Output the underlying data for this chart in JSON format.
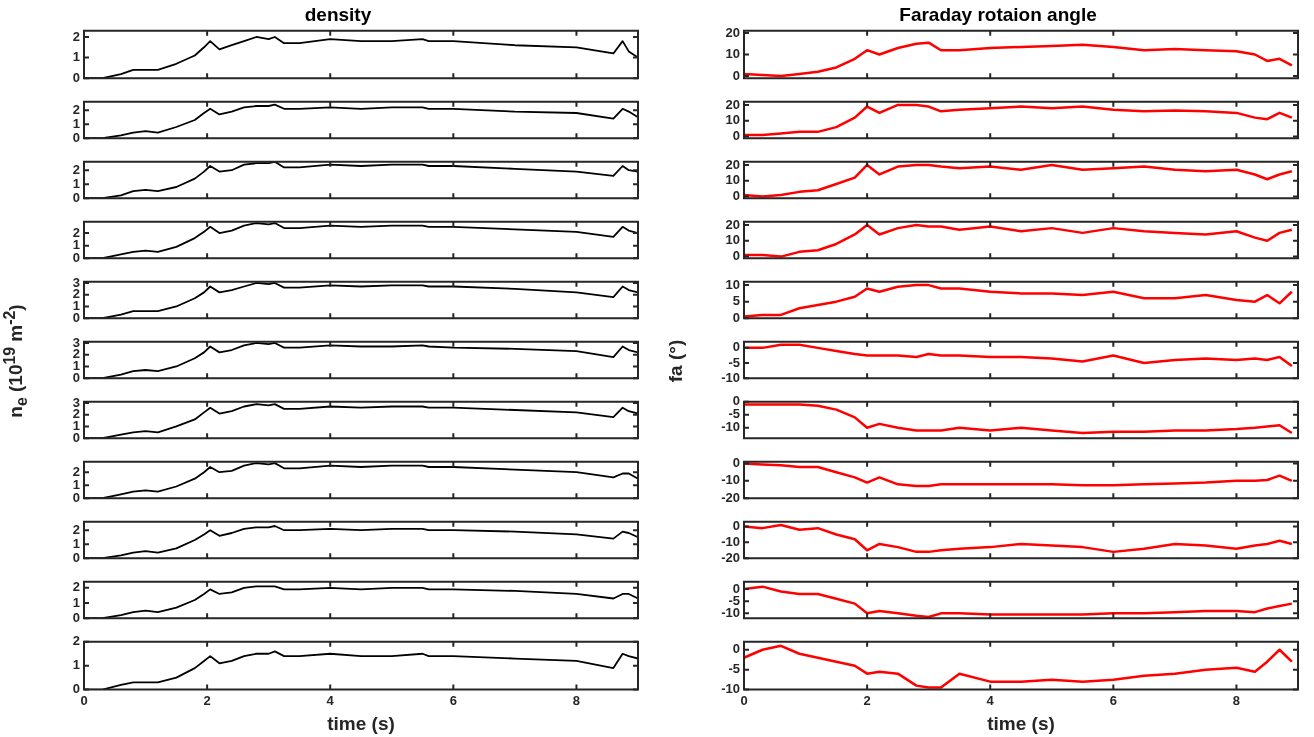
{
  "chart_data": [
    {
      "type": "line",
      "title": "density",
      "x": [
        0,
        0.3,
        0.6,
        0.8,
        1,
        1.2,
        1.5,
        1.8,
        1.95,
        2.05,
        2.2,
        2.4,
        2.6,
        2.8,
        3,
        3.1,
        3.25,
        3.5,
        4,
        4.5,
        5,
        5.5,
        5.6,
        6,
        7,
        8,
        8.6,
        8.75,
        8.85,
        9
      ],
      "series": [
        {
          "color": "#000000",
          "values": [
            0,
            0,
            0.2,
            0.4,
            0.4,
            0.4,
            0.7,
            1.1,
            1.5,
            1.8,
            1.4,
            1.6,
            1.8,
            2,
            1.9,
            2,
            1.7,
            1.7,
            1.9,
            1.8,
            1.8,
            1.9,
            1.8,
            1.8,
            1.6,
            1.5,
            1.2,
            1.8,
            1.3,
            1
          ]
        }
      ],
      "xlim": [
        0,
        9
      ],
      "xticks": [
        0,
        2,
        4,
        6,
        8
      ],
      "ylim": [
        0,
        2.3
      ],
      "yticks": [
        0,
        1,
        2
      ],
      "tick_labels": "y"
    },
    {
      "type": "line",
      "x": [
        0,
        0.3,
        0.6,
        0.8,
        1,
        1.2,
        1.5,
        1.8,
        1.95,
        2.05,
        2.2,
        2.4,
        2.6,
        2.8,
        3,
        3.1,
        3.25,
        3.5,
        4,
        4.5,
        5,
        5.5,
        5.6,
        6,
        7,
        8,
        8.6,
        8.75,
        8.85,
        9
      ],
      "series": [
        {
          "color": "#000000",
          "values": [
            0,
            0,
            0.2,
            0.4,
            0.5,
            0.4,
            0.8,
            1.3,
            1.8,
            2.1,
            1.7,
            1.9,
            2.2,
            2.3,
            2.3,
            2.4,
            2.1,
            2.1,
            2.2,
            2.1,
            2.2,
            2.2,
            2.1,
            2.1,
            1.9,
            1.8,
            1.4,
            2.1,
            1.9,
            1.5
          ]
        }
      ],
      "xlim": [
        0,
        9
      ],
      "xticks": [
        0,
        2,
        4,
        6,
        8
      ],
      "ylim": [
        0,
        2.6
      ],
      "yticks": [
        0,
        1,
        2
      ],
      "tick_labels": "y"
    },
    {
      "type": "line",
      "x": [
        0,
        0.3,
        0.6,
        0.8,
        1,
        1.2,
        1.5,
        1.8,
        1.95,
        2.05,
        2.2,
        2.4,
        2.6,
        2.8,
        3,
        3.1,
        3.25,
        3.5,
        4,
        4.5,
        5,
        5.5,
        5.6,
        6,
        7,
        8,
        8.6,
        8.75,
        8.85,
        9
      ],
      "series": [
        {
          "color": "#000000",
          "values": [
            0,
            0,
            0.2,
            0.5,
            0.6,
            0.5,
            0.8,
            1.4,
            1.9,
            2.3,
            1.9,
            2,
            2.4,
            2.5,
            2.5,
            2.6,
            2.2,
            2.2,
            2.4,
            2.3,
            2.4,
            2.4,
            2.3,
            2.3,
            2.1,
            1.9,
            1.6,
            2.3,
            2,
            1.9
          ]
        }
      ],
      "xlim": [
        0,
        9
      ],
      "xticks": [
        0,
        2,
        4,
        6,
        8
      ],
      "ylim": [
        0,
        2.6
      ],
      "yticks": [
        0,
        1,
        2
      ],
      "tick_labels": "y"
    },
    {
      "type": "line",
      "x": [
        0,
        0.3,
        0.6,
        0.8,
        1,
        1.2,
        1.5,
        1.8,
        1.95,
        2.05,
        2.2,
        2.4,
        2.6,
        2.8,
        3,
        3.1,
        3.25,
        3.5,
        4,
        4.5,
        5,
        5.5,
        5.6,
        6,
        7,
        8,
        8.6,
        8.75,
        8.85,
        9
      ],
      "series": [
        {
          "color": "#000000",
          "values": [
            0,
            0,
            0.3,
            0.5,
            0.6,
            0.5,
            0.9,
            1.6,
            2.1,
            2.5,
            2,
            2.2,
            2.6,
            2.8,
            2.7,
            2.8,
            2.4,
            2.4,
            2.6,
            2.5,
            2.6,
            2.6,
            2.5,
            2.5,
            2.3,
            2.1,
            1.7,
            2.5,
            2.2,
            2
          ]
        }
      ],
      "xlim": [
        0,
        9
      ],
      "xticks": [
        0,
        2,
        4,
        6,
        8
      ],
      "ylim": [
        0,
        2.9
      ],
      "yticks": [
        0,
        1,
        2
      ],
      "tick_labels": "y"
    },
    {
      "type": "line",
      "x": [
        0,
        0.3,
        0.6,
        0.8,
        1,
        1.2,
        1.5,
        1.8,
        1.95,
        2.05,
        2.2,
        2.4,
        2.6,
        2.8,
        3,
        3.1,
        3.25,
        3.5,
        4,
        4.5,
        5,
        5.5,
        5.6,
        6,
        7,
        8,
        8.6,
        8.75,
        8.85,
        9
      ],
      "series": [
        {
          "color": "#000000",
          "values": [
            0,
            0,
            0.3,
            0.6,
            0.6,
            0.6,
            1,
            1.7,
            2.2,
            2.7,
            2.2,
            2.4,
            2.7,
            3,
            2.9,
            3,
            2.6,
            2.6,
            2.8,
            2.7,
            2.8,
            2.8,
            2.7,
            2.7,
            2.5,
            2.2,
            1.8,
            2.7,
            2.4,
            2.2
          ]
        }
      ],
      "xlim": [
        0,
        9
      ],
      "xticks": [
        0,
        2,
        4,
        6,
        8
      ],
      "ylim": [
        0,
        3.1
      ],
      "yticks": [
        0,
        1,
        2,
        3
      ],
      "tick_labels": "y"
    },
    {
      "type": "line",
      "ylabel": "n$_{e}$ (10$^{19}$ m$^{-2}$)",
      "x": [
        0,
        0.3,
        0.6,
        0.8,
        1,
        1.2,
        1.5,
        1.8,
        1.95,
        2.05,
        2.2,
        2.4,
        2.6,
        2.8,
        3,
        3.1,
        3.25,
        3.5,
        4,
        4.5,
        5,
        5.5,
        5.6,
        6,
        7,
        8,
        8.6,
        8.75,
        8.85,
        9
      ],
      "series": [
        {
          "color": "#000000",
          "values": [
            0,
            0,
            0.3,
            0.6,
            0.7,
            0.6,
            1,
            1.7,
            2.2,
            2.7,
            2.2,
            2.4,
            2.8,
            3,
            2.9,
            3,
            2.6,
            2.6,
            2.8,
            2.7,
            2.7,
            2.8,
            2.7,
            2.6,
            2.5,
            2.3,
            1.8,
            2.7,
            2.4,
            2.2
          ]
        }
      ],
      "xlim": [
        0,
        9
      ],
      "xticks": [
        0,
        2,
        4,
        6,
        8
      ],
      "ylim": [
        0,
        3.1
      ],
      "yticks": [
        0,
        1,
        2,
        3
      ],
      "tick_labels": "y"
    },
    {
      "type": "line",
      "x": [
        0,
        0.3,
        0.6,
        0.8,
        1,
        1.2,
        1.5,
        1.8,
        1.95,
        2.05,
        2.2,
        2.4,
        2.6,
        2.8,
        3,
        3.1,
        3.25,
        3.5,
        4,
        4.5,
        5,
        5.5,
        5.6,
        6,
        7,
        8,
        8.6,
        8.75,
        8.85,
        9
      ],
      "series": [
        {
          "color": "#000000",
          "values": [
            0,
            0,
            0.3,
            0.5,
            0.6,
            0.5,
            1,
            1.6,
            2.2,
            2.6,
            2.1,
            2.3,
            2.7,
            2.9,
            2.8,
            2.9,
            2.5,
            2.5,
            2.7,
            2.6,
            2.7,
            2.7,
            2.6,
            2.6,
            2.4,
            2.2,
            1.8,
            2.6,
            2.3,
            2.1
          ]
        }
      ],
      "xlim": [
        0,
        9
      ],
      "xticks": [
        0,
        2,
        4,
        6,
        8
      ],
      "ylim": [
        0,
        3.1
      ],
      "yticks": [
        0,
        1,
        2,
        3
      ],
      "tick_labels": "y"
    },
    {
      "type": "line",
      "x": [
        0,
        0.3,
        0.6,
        0.8,
        1,
        1.2,
        1.5,
        1.8,
        1.95,
        2.05,
        2.2,
        2.4,
        2.6,
        2.8,
        3,
        3.1,
        3.25,
        3.5,
        4,
        4.5,
        5,
        5.5,
        5.6,
        6,
        7,
        8,
        8.6,
        8.75,
        8.85,
        9
      ],
      "series": [
        {
          "color": "#000000",
          "values": [
            0,
            0,
            0.3,
            0.5,
            0.6,
            0.5,
            0.9,
            1.5,
            2,
            2.4,
            2,
            2.1,
            2.5,
            2.7,
            2.6,
            2.7,
            2.3,
            2.3,
            2.5,
            2.4,
            2.5,
            2.5,
            2.4,
            2.4,
            2.2,
            2,
            1.6,
            1.9,
            1.9,
            1.5
          ]
        }
      ],
      "xlim": [
        0,
        9
      ],
      "xticks": [
        0,
        2,
        4,
        6,
        8
      ],
      "ylim": [
        0,
        2.8
      ],
      "yticks": [
        0,
        1,
        2
      ],
      "tick_labels": "y"
    },
    {
      "type": "line",
      "x": [
        0,
        0.3,
        0.6,
        0.8,
        1,
        1.2,
        1.5,
        1.8,
        1.95,
        2.05,
        2.2,
        2.4,
        2.6,
        2.8,
        3,
        3.1,
        3.25,
        3.5,
        4,
        4.5,
        5,
        5.5,
        5.6,
        6,
        7,
        8,
        8.6,
        8.75,
        8.85,
        9
      ],
      "series": [
        {
          "color": "#000000",
          "values": [
            0,
            0,
            0.2,
            0.4,
            0.5,
            0.4,
            0.7,
            1.3,
            1.7,
            2,
            1.6,
            1.8,
            2.1,
            2.2,
            2.2,
            2.3,
            2,
            2,
            2.1,
            2,
            2.1,
            2.1,
            2,
            2,
            1.9,
            1.7,
            1.4,
            1.9,
            1.8,
            1.5
          ]
        }
      ],
      "xlim": [
        0,
        9
      ],
      "xticks": [
        0,
        2,
        4,
        6,
        8
      ],
      "ylim": [
        0,
        2.6
      ],
      "yticks": [
        0,
        1,
        2
      ],
      "tick_labels": "y"
    },
    {
      "type": "line",
      "x": [
        0,
        0.3,
        0.6,
        0.8,
        1,
        1.2,
        1.5,
        1.8,
        1.95,
        2.05,
        2.2,
        2.4,
        2.6,
        2.8,
        3,
        3.1,
        3.25,
        3.5,
        4,
        4.5,
        5,
        5.5,
        5.6,
        6,
        7,
        8,
        8.6,
        8.75,
        8.85,
        9
      ],
      "series": [
        {
          "color": "#000000",
          "values": [
            0,
            0,
            0.2,
            0.4,
            0.5,
            0.4,
            0.7,
            1.2,
            1.6,
            1.9,
            1.6,
            1.7,
            2,
            2.1,
            2.1,
            2.1,
            1.9,
            1.9,
            2,
            1.9,
            2,
            2,
            1.9,
            1.9,
            1.8,
            1.6,
            1.3,
            1.6,
            1.6,
            1.3
          ]
        }
      ],
      "xlim": [
        0,
        9
      ],
      "xticks": [
        0,
        2,
        4,
        6,
        8
      ],
      "ylim": [
        0,
        2.4
      ],
      "yticks": [
        0,
        1,
        2
      ],
      "tick_labels": "y"
    },
    {
      "type": "line",
      "xlabel": "time (s)",
      "x": [
        0,
        0.3,
        0.6,
        0.8,
        1,
        1.2,
        1.5,
        1.8,
        1.95,
        2.05,
        2.2,
        2.4,
        2.6,
        2.8,
        3,
        3.1,
        3.25,
        3.5,
        4,
        4.5,
        5,
        5.5,
        5.6,
        6,
        7,
        8,
        8.6,
        8.75,
        8.85,
        9
      ],
      "series": [
        {
          "color": "#000000",
          "values": [
            0,
            0,
            0.2,
            0.3,
            0.3,
            0.3,
            0.5,
            0.9,
            1.2,
            1.4,
            1.1,
            1.2,
            1.4,
            1.5,
            1.5,
            1.6,
            1.4,
            1.4,
            1.5,
            1.4,
            1.4,
            1.5,
            1.4,
            1.4,
            1.3,
            1.2,
            0.9,
            1.5,
            1.4,
            1.3
          ]
        }
      ],
      "xlim": [
        0,
        9
      ],
      "xticks": [
        0,
        2,
        4,
        6,
        8
      ],
      "ylim": [
        0,
        2
      ],
      "yticks": [
        0,
        1,
        2
      ]
    },
    {
      "type": "line",
      "title": "Faraday rotaion angle",
      "x": [
        0,
        0.3,
        0.6,
        0.9,
        1.2,
        1.5,
        1.8,
        2.0,
        2.2,
        2.5,
        2.8,
        3.0,
        3.2,
        3.5,
        4,
        4.5,
        5,
        5.5,
        6,
        6.5,
        7,
        7.5,
        8,
        8.3,
        8.5,
        8.7,
        8.9
      ],
      "series": [
        {
          "color": "#ff0000",
          "values": [
            1,
            0.5,
            0,
            1,
            2,
            4,
            8,
            12,
            10,
            13,
            15,
            15.5,
            12,
            12,
            13,
            13.5,
            14,
            14.5,
            13.5,
            12,
            12.5,
            12,
            11.5,
            10,
            7,
            8,
            5
          ]
        }
      ],
      "xlim": [
        0,
        9
      ],
      "xticks": [
        0,
        2,
        4,
        6,
        8
      ],
      "ylim": [
        -1,
        21
      ],
      "yticks": [
        0,
        10,
        20
      ],
      "tick_labels": "y"
    },
    {
      "type": "line",
      "x": [
        0,
        0.3,
        0.6,
        0.9,
        1.2,
        1.5,
        1.8,
        2.0,
        2.2,
        2.5,
        2.8,
        3.0,
        3.2,
        3.5,
        4,
        4.5,
        5,
        5.5,
        6,
        6.5,
        7,
        7.5,
        8,
        8.3,
        8.5,
        8.7,
        8.9
      ],
      "series": [
        {
          "color": "#ff0000",
          "values": [
            1,
            1,
            2,
            3,
            3,
            6,
            12,
            19,
            15,
            20,
            20,
            19,
            16,
            17,
            18,
            19,
            18,
            19,
            17,
            16,
            16.5,
            16,
            15,
            12,
            11,
            15,
            12
          ]
        }
      ],
      "xlim": [
        0,
        9
      ],
      "xticks": [
        0,
        2,
        4,
        6,
        8
      ],
      "ylim": [
        -1,
        22
      ],
      "yticks": [
        0,
        10,
        20
      ],
      "tick_labels": "y"
    },
    {
      "type": "line",
      "x": [
        0,
        0.3,
        0.6,
        0.9,
        1.2,
        1.5,
        1.8,
        2.0,
        2.2,
        2.5,
        2.8,
        3.0,
        3.2,
        3.5,
        4,
        4.5,
        5,
        5.5,
        6,
        6.5,
        7,
        7.5,
        8,
        8.3,
        8.5,
        8.7,
        8.9
      ],
      "series": [
        {
          "color": "#ff0000",
          "values": [
            1,
            0,
            1,
            3,
            4,
            8,
            12,
            20,
            14,
            19,
            20,
            20,
            19,
            18,
            19,
            17,
            20,
            17,
            18,
            19,
            17,
            16,
            17,
            14,
            11,
            14,
            16
          ]
        }
      ],
      "xlim": [
        0,
        9
      ],
      "xticks": [
        0,
        2,
        4,
        6,
        8
      ],
      "ylim": [
        -1,
        22
      ],
      "yticks": [
        0,
        10,
        20
      ],
      "tick_labels": "y"
    },
    {
      "type": "line",
      "x": [
        0,
        0.3,
        0.6,
        0.9,
        1.2,
        1.5,
        1.8,
        2.0,
        2.2,
        2.5,
        2.8,
        3.0,
        3.2,
        3.5,
        4,
        4.5,
        5,
        5.5,
        6,
        6.5,
        7,
        7.5,
        8,
        8.3,
        8.5,
        8.7,
        8.9
      ],
      "series": [
        {
          "color": "#ff0000",
          "values": [
            1,
            1,
            0,
            3,
            4,
            8,
            14,
            20,
            14,
            18,
            20,
            19,
            19,
            17,
            19,
            16,
            18,
            15,
            18,
            16,
            15,
            14,
            16,
            12,
            10,
            15,
            17
          ]
        }
      ],
      "xlim": [
        0,
        9
      ],
      "xticks": [
        0,
        2,
        4,
        6,
        8
      ],
      "ylim": [
        -1,
        22
      ],
      "yticks": [
        0,
        10,
        20
      ],
      "tick_labels": "y"
    },
    {
      "type": "line",
      "x": [
        0,
        0.3,
        0.6,
        0.9,
        1.2,
        1.5,
        1.8,
        2.0,
        2.2,
        2.5,
        2.8,
        3.0,
        3.2,
        3.5,
        4,
        4.5,
        5,
        5.5,
        6,
        6.5,
        7,
        7.5,
        8,
        8.3,
        8.5,
        8.7,
        8.9
      ],
      "series": [
        {
          "color": "#ff0000",
          "values": [
            0.5,
            1,
            1,
            3,
            4,
            5,
            6.5,
            9,
            8,
            9.5,
            10,
            10,
            9,
            9,
            8,
            7.5,
            7.5,
            7,
            8,
            6,
            6,
            7,
            5.5,
            5,
            7,
            4.5,
            8
          ]
        }
      ],
      "xlim": [
        0,
        9
      ],
      "xticks": [
        0,
        2,
        4,
        6,
        8
      ],
      "ylim": [
        0,
        11
      ],
      "yticks": [
        0,
        5,
        10
      ],
      "tick_labels": "y"
    },
    {
      "type": "line",
      "ylabel": "fa (°)",
      "x": [
        0,
        0.3,
        0.6,
        0.9,
        1.2,
        1.5,
        1.8,
        2.0,
        2.2,
        2.5,
        2.8,
        3.0,
        3.2,
        3.5,
        4,
        4.5,
        5,
        5.5,
        6,
        6.5,
        7,
        7.5,
        8,
        8.3,
        8.5,
        8.7,
        8.9
      ],
      "series": [
        {
          "color": "#ff0000",
          "values": [
            0,
            0,
            1,
            1,
            0,
            -1,
            -2,
            -2.5,
            -2.5,
            -2.5,
            -3,
            -2,
            -2.5,
            -2.5,
            -3,
            -3,
            -3.5,
            -4.5,
            -2.5,
            -5,
            -4,
            -3.5,
            -4,
            -3.5,
            -4,
            -3,
            -6
          ]
        }
      ],
      "xlim": [
        0,
        9
      ],
      "xticks": [
        0,
        2,
        4,
        6,
        8
      ],
      "ylim": [
        -10,
        2
      ],
      "yticks": [
        -10,
        -5,
        0
      ],
      "tick_labels": "y"
    },
    {
      "type": "line",
      "x": [
        0,
        0.3,
        0.6,
        0.9,
        1.2,
        1.5,
        1.8,
        2.0,
        2.2,
        2.5,
        2.8,
        3.0,
        3.2,
        3.5,
        4,
        4.5,
        5,
        5.5,
        6,
        6.5,
        7,
        7.5,
        8,
        8.3,
        8.5,
        8.7,
        8.9
      ],
      "series": [
        {
          "color": "#ff0000",
          "values": [
            -1,
            -1,
            -1,
            -1,
            -1.5,
            -3,
            -6,
            -10,
            -8.5,
            -10,
            -11,
            -11,
            -11,
            -10,
            -11,
            -10,
            -11,
            -12,
            -11.5,
            -11.5,
            -11,
            -11,
            -10.5,
            -10,
            -9.5,
            -9,
            -12
          ]
        }
      ],
      "xlim": [
        0,
        9
      ],
      "xticks": [
        0,
        2,
        4,
        6,
        8
      ],
      "ylim": [
        -14,
        0
      ],
      "yticks": [
        -10,
        -5,
        0
      ],
      "tick_labels": "y"
    },
    {
      "type": "line",
      "x": [
        0,
        0.3,
        0.6,
        0.9,
        1.2,
        1.5,
        1.8,
        2.0,
        2.2,
        2.5,
        2.8,
        3.0,
        3.2,
        3.5,
        4,
        4.5,
        5,
        5.5,
        6,
        6.5,
        7,
        7.5,
        8,
        8.3,
        8.5,
        8.7,
        8.9
      ],
      "series": [
        {
          "color": "#ff0000",
          "values": [
            0,
            -0.5,
            -1,
            -2,
            -2,
            -5,
            -8,
            -11,
            -8,
            -12,
            -13,
            -13,
            -12,
            -12,
            -12,
            -12,
            -12,
            -12.5,
            -12.5,
            -12,
            -11.5,
            -11,
            -10,
            -10,
            -9.5,
            -7,
            -10
          ]
        }
      ],
      "xlim": [
        0,
        9
      ],
      "xticks": [
        0,
        2,
        4,
        6,
        8
      ],
      "ylim": [
        -20,
        1
      ],
      "yticks": [
        -20,
        -10,
        0
      ],
      "tick_labels": "y"
    },
    {
      "type": "line",
      "x": [
        0,
        0.3,
        0.6,
        0.9,
        1.2,
        1.5,
        1.8,
        2.0,
        2.2,
        2.5,
        2.8,
        3.0,
        3.2,
        3.5,
        4,
        4.5,
        5,
        5.5,
        6,
        6.5,
        7,
        7.5,
        8,
        8.3,
        8.5,
        8.7,
        8.9
      ],
      "series": [
        {
          "color": "#ff0000",
          "values": [
            0,
            -1,
            1,
            -2,
            -1,
            -5,
            -8,
            -15,
            -11,
            -13,
            -16,
            -16,
            -15,
            -14,
            -13,
            -11,
            -12,
            -13,
            -16,
            -14,
            -11,
            -12,
            -14,
            -12,
            -11,
            -9,
            -11
          ]
        }
      ],
      "xlim": [
        0,
        9
      ],
      "xticks": [
        0,
        2,
        4,
        6,
        8
      ],
      "ylim": [
        -20,
        3
      ],
      "yticks": [
        -20,
        -10,
        0
      ],
      "tick_labels": "y"
    },
    {
      "type": "line",
      "x": [
        0,
        0.3,
        0.6,
        0.9,
        1.2,
        1.5,
        1.8,
        2.0,
        2.2,
        2.5,
        2.8,
        3.0,
        3.2,
        3.5,
        4,
        4.5,
        5,
        5.5,
        6,
        6.5,
        7,
        7.5,
        8,
        8.3,
        8.5,
        8.7,
        8.9
      ],
      "series": [
        {
          "color": "#ff0000",
          "values": [
            0,
            1,
            -1,
            -2,
            -2,
            -4,
            -6,
            -10,
            -9,
            -10,
            -11,
            -11.5,
            -10,
            -10,
            -10.5,
            -10.5,
            -10.5,
            -10.5,
            -10,
            -10,
            -9.5,
            -9,
            -9,
            -9.5,
            -8,
            -7,
            -6
          ]
        }
      ],
      "xlim": [
        0,
        9
      ],
      "xticks": [
        0,
        2,
        4,
        6,
        8
      ],
      "ylim": [
        -12,
        3
      ],
      "yticks": [
        -10,
        -5,
        0
      ],
      "tick_labels": "y"
    },
    {
      "type": "line",
      "xlabel": "time (s)",
      "x": [
        0,
        0.3,
        0.6,
        0.9,
        1.2,
        1.5,
        1.8,
        2.0,
        2.2,
        2.5,
        2.8,
        3.0,
        3.2,
        3.5,
        4,
        4.5,
        5,
        5.5,
        6,
        6.5,
        7,
        7.5,
        8,
        8.3,
        8.5,
        8.7,
        8.9
      ],
      "series": [
        {
          "color": "#ff0000",
          "values": [
            -2,
            0,
            1,
            -1,
            -2,
            -3,
            -4,
            -6,
            -5.5,
            -6,
            -9,
            -9.5,
            -9.5,
            -6,
            -8,
            -8,
            -7.5,
            -8,
            -7.5,
            -6.5,
            -6,
            -5,
            -4.5,
            -5.5,
            -3,
            0,
            -3
          ]
        }
      ],
      "xlim": [
        0,
        9
      ],
      "xticks": [
        0,
        2,
        4,
        6,
        8
      ],
      "ylim": [
        -10,
        2
      ],
      "yticks": [
        -10,
        -5,
        0
      ]
    }
  ]
}
